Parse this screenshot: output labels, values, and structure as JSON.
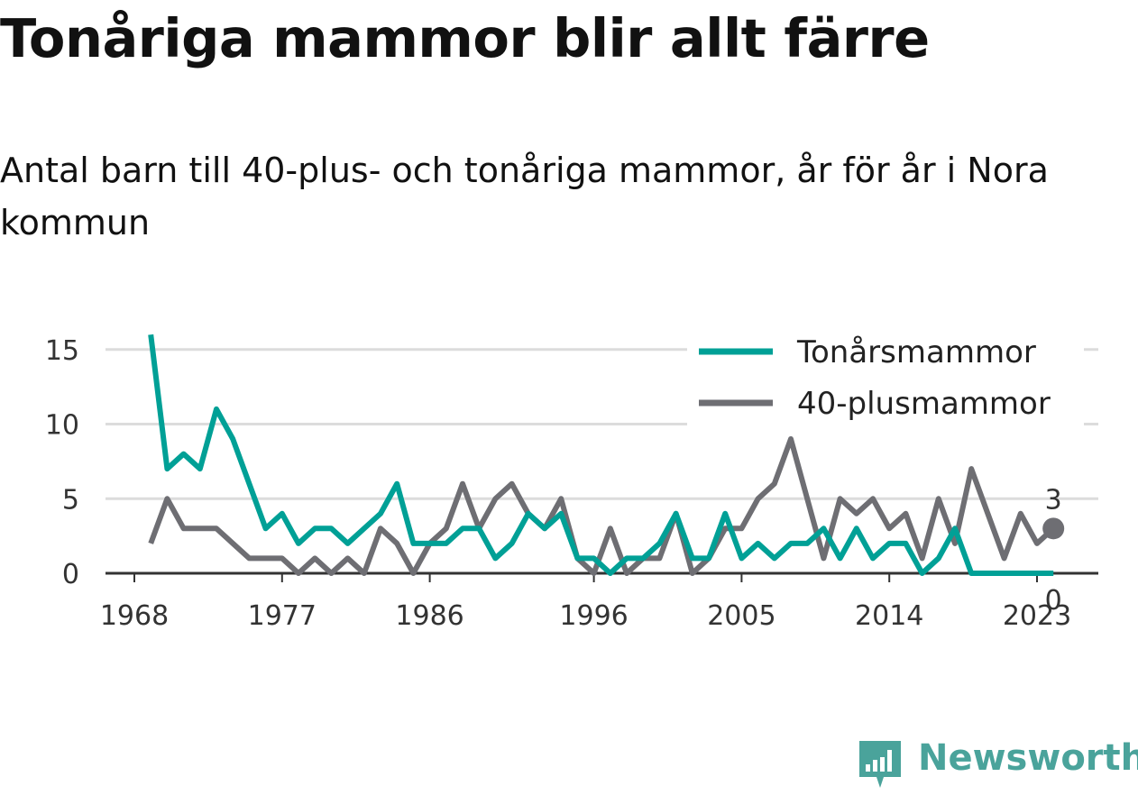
{
  "title": "Tonåriga mammor blir allt färre",
  "subtitle": "Antal barn till 40-plus- och tonåriga mammor, år för år i Nora kommun",
  "brand": {
    "name": "Newsworthy",
    "color": "#4aa39b",
    "icon": "newsworthy-logo-icon"
  },
  "chart_data": {
    "type": "line",
    "x": [
      1969,
      1970,
      1971,
      1972,
      1973,
      1974,
      1975,
      1976,
      1977,
      1978,
      1979,
      1980,
      1981,
      1982,
      1983,
      1984,
      1985,
      1986,
      1987,
      1988,
      1989,
      1990,
      1991,
      1992,
      1993,
      1994,
      1995,
      1996,
      1997,
      1998,
      1999,
      2000,
      2001,
      2002,
      2003,
      2004,
      2005,
      2006,
      2007,
      2008,
      2009,
      2010,
      2011,
      2012,
      2013,
      2014,
      2015,
      2016,
      2017,
      2018,
      2019,
      2020,
      2021,
      2022,
      2023,
      2024
    ],
    "series": [
      {
        "name": "Tonårsmammor",
        "color": "#00a096",
        "values": [
          16,
          7,
          8,
          7,
          11,
          9,
          6,
          3,
          4,
          2,
          3,
          3,
          2,
          3,
          4,
          6,
          2,
          2,
          2,
          3,
          3,
          1,
          2,
          4,
          3,
          4,
          1,
          1,
          0,
          1,
          1,
          2,
          4,
          1,
          1,
          4,
          1,
          2,
          1,
          2,
          2,
          3,
          1,
          3,
          1,
          2,
          2,
          0,
          1,
          3,
          0,
          0,
          0,
          0,
          0,
          0
        ]
      },
      {
        "name": "40-plusmammor",
        "color": "#6e6e73",
        "values": [
          2,
          5,
          3,
          3,
          3,
          2,
          1,
          1,
          1,
          0,
          1,
          0,
          1,
          0,
          3,
          2,
          0,
          2,
          3,
          6,
          3,
          5,
          6,
          4,
          3,
          5,
          1,
          0,
          3,
          0,
          1,
          1,
          4,
          0,
          1,
          3,
          3,
          5,
          6,
          9,
          5,
          1,
          5,
          4,
          5,
          3,
          4,
          1,
          5,
          2,
          7,
          4,
          1,
          4,
          2,
          3
        ]
      }
    ],
    "xticks": [
      "1968",
      "1977",
      "1986",
      "1996",
      "2005",
      "2014",
      "2023"
    ],
    "yticks": [
      "0",
      "5",
      "10",
      "15"
    ],
    "xlim": [
      1968,
      2025
    ],
    "ylim": [
      0,
      16.5
    ],
    "xlabel": "",
    "ylabel": "",
    "grid": true,
    "legend_position": "top-right",
    "end_labels": [
      {
        "series": "40-plusmammor",
        "text": "3"
      },
      {
        "series": "Tonårsmammor",
        "text": "0"
      }
    ]
  }
}
